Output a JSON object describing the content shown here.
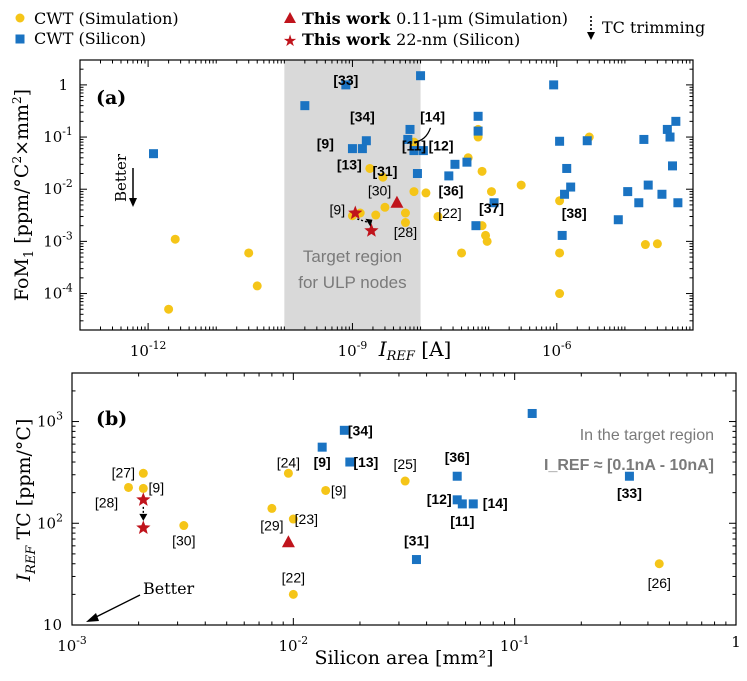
{
  "colors": {
    "cwt_sim": "#f5c518",
    "cwt_si": "#1a73c2",
    "this_work": "#c0141c",
    "target_band": "#d9d9d9",
    "band_text": "#7a7a7a"
  },
  "legend": {
    "cwt_sim": "CWT (Simulation)",
    "cwt_si": "CWT (Silicon)",
    "tw_sim_bold": "This work",
    "tw_sim_rest": "0.11-μm (Simulation)",
    "tw_si_bold": "This work",
    "tw_si_rest": "22-nm (Silicon)",
    "trim": "TC trimming"
  },
  "chart_data": [
    {
      "panel": "(a)",
      "type": "scatter",
      "xlabel": "I_REF [A]",
      "ylabel": "FoM1 [ppm/°C²×mm²]",
      "xscale": "log",
      "yscale": "log",
      "xlim": [
        1e-13,
        0.0001
      ],
      "ylim": [
        2e-05,
        3
      ],
      "xticks": [
        "10^-12",
        "10^-9",
        "10^-6"
      ],
      "yticks": [
        "10^-4",
        "10^-3",
        "10^-2",
        "10^-1",
        "1"
      ],
      "target_band_x": [
        1e-10,
        1e-08
      ],
      "target_label": [
        "Target region",
        "for ULP nodes"
      ],
      "better_label": "Better",
      "series": [
        {
          "name": "CWT (Simulation)",
          "points": [
            [
              2e-12,
              5e-05
            ],
            [
              2.5e-12,
              0.0011
            ],
            [
              3e-11,
              0.0006
            ],
            [
              4e-11,
              0.00014
            ],
            [
              1e-09,
              0.0031
            ],
            [
              1.3e-09,
              0.0035
            ],
            [
              1.8e-09,
              0.025
            ],
            [
              2.2e-09,
              0.0032
            ],
            [
              2.8e-09,
              0.017
            ],
            [
              3e-09,
              0.0045
            ],
            [
              6e-09,
              0.0035
            ],
            [
              6e-09,
              0.0023
            ],
            [
              8e-09,
              0.009
            ],
            [
              8e-09,
              0.08
            ],
            [
              1.2e-08,
              0.0085
            ],
            [
              1.8e-08,
              0.003
            ],
            [
              4e-08,
              0.0006
            ],
            [
              5e-08,
              0.04
            ],
            [
              7e-08,
              0.14
            ],
            [
              7e-08,
              0.1
            ],
            [
              8e-08,
              0.022
            ],
            [
              8e-08,
              0.002
            ],
            [
              9e-08,
              0.0013
            ],
            [
              9.5e-08,
              0.001
            ],
            [
              1.1e-07,
              0.009
            ],
            [
              3e-07,
              0.012
            ],
            [
              1.1e-06,
              0.006
            ],
            [
              1.1e-06,
              0.0006
            ],
            [
              1.1e-06,
              0.0001
            ],
            [
              3e-06,
              0.1
            ],
            [
              2e-05,
              0.00087
            ],
            [
              3e-05,
              0.0009
            ]
          ]
        },
        {
          "name": "CWT (Silicon)",
          "points": [
            [
              1.2e-12,
              0.048
            ],
            [
              2e-10,
              0.4
            ],
            [
              8e-10,
              1.0
            ],
            [
              1e-09,
              0.06
            ],
            [
              1.4e-09,
              0.06
            ],
            [
              1.6e-09,
              0.085
            ],
            [
              6.5e-09,
              0.09
            ],
            [
              7e-09,
              0.14
            ],
            [
              8e-09,
              0.055
            ],
            [
              9e-09,
              0.02
            ],
            [
              1e-08,
              1.5
            ],
            [
              1.1e-08,
              0.055
            ],
            [
              2.6e-08,
              0.018
            ],
            [
              3.2e-08,
              0.03
            ],
            [
              4.8e-08,
              0.033
            ],
            [
              6.5e-08,
              0.002
            ],
            [
              7e-08,
              0.25
            ],
            [
              7e-08,
              0.13
            ],
            [
              1.2e-07,
              0.0055
            ],
            [
              9e-07,
              1.0
            ],
            [
              1.1e-06,
              0.083
            ],
            [
              1.2e-06,
              0.0013
            ],
            [
              1.3e-06,
              0.008
            ],
            [
              1.4e-06,
              0.025
            ],
            [
              1.6e-06,
              0.011
            ],
            [
              2.8e-06,
              0.085
            ],
            [
              8e-06,
              0.0026
            ],
            [
              1.1e-05,
              0.009
            ],
            [
              1.6e-05,
              0.0055
            ],
            [
              1.9e-05,
              0.09
            ],
            [
              2.2e-05,
              0.012
            ],
            [
              3.5e-05,
              0.008
            ],
            [
              4.2e-05,
              0.14
            ],
            [
              4.6e-05,
              0.1
            ],
            [
              5e-05,
              0.028
            ],
            [
              5.6e-05,
              0.2
            ],
            [
              6e-05,
              0.0055
            ]
          ]
        },
        {
          "name": "This work 0.11-μm (Simulation)",
          "points": [
            [
              4.5e-09,
              0.0055
            ]
          ]
        },
        {
          "name": "This work 22-nm (Silicon)",
          "points": [
            [
              1.1e-09,
              0.0035
            ],
            [
              1.9e-09,
              0.0016
            ]
          ]
        }
      ],
      "annotations": [
        {
          "text": "[33]",
          "bold": true,
          "at": [
            8e-10,
            1.0
          ]
        },
        {
          "text": "[34]",
          "bold": true,
          "at": [
            1.4e-09,
            0.2
          ]
        },
        {
          "text": "[14]",
          "bold": true,
          "at": [
            1.5e-08,
            0.2
          ]
        },
        {
          "text": "[9]",
          "bold": true,
          "at": [
            4e-10,
            0.06
          ]
        },
        {
          "text": "[11]",
          "bold": true,
          "at": [
            8e-09,
            0.055
          ]
        },
        {
          "text": "[12]",
          "bold": true,
          "at": [
            2e-08,
            0.055
          ]
        },
        {
          "text": "[13]",
          "bold": true,
          "at": [
            9e-10,
            0.024
          ]
        },
        {
          "text": "[31]",
          "bold": true,
          "at": [
            3e-09,
            0.018
          ]
        },
        {
          "text": "[30]",
          "bold": false,
          "at": [
            2.5e-09,
            0.0075
          ]
        },
        {
          "text": "[36]",
          "bold": true,
          "at": [
            2.8e-08,
            0.0075
          ]
        },
        {
          "text": "[9]",
          "bold": false,
          "at": [
            6e-10,
            0.0033
          ]
        },
        {
          "text": "[22]",
          "bold": false,
          "at": [
            2.7e-08,
            0.0028
          ]
        },
        {
          "text": "[37]",
          "bold": true,
          "at": [
            1.1e-07,
            0.0035
          ]
        },
        {
          "text": "[38]",
          "bold": true,
          "at": [
            1.8e-06,
            0.0028
          ]
        },
        {
          "text": "[28]",
          "bold": false,
          "at": [
            6e-09,
            0.0012
          ]
        }
      ]
    },
    {
      "panel": "(b)",
      "type": "scatter",
      "xlabel": "Silicon area [mm²]",
      "ylabel": "I_REF TC [ppm/°C]",
      "xscale": "log",
      "yscale": "log",
      "xlim": [
        0.001,
        1
      ],
      "ylim": [
        10,
        3000
      ],
      "xticks": [
        "10^-3",
        "10^-2",
        "10^-1",
        "1"
      ],
      "yticks": [
        "10",
        "10^2",
        "10^3"
      ],
      "better_label": "Better",
      "note": [
        "In the target region",
        "I_REF ≈ [0.1nA - 10nA]"
      ],
      "series": [
        {
          "name": "CWT (Simulation)",
          "points": [
            [
              0.0021,
              310
            ],
            [
              0.0021,
              220
            ],
            [
              0.0018,
              225
            ],
            [
              0.0032,
              95
            ],
            [
              0.008,
              140
            ],
            [
              0.0095,
              310
            ],
            [
              0.01,
              110
            ],
            [
              0.01,
              20
            ],
            [
              0.014,
              210
            ],
            [
              0.032,
              260
            ],
            [
              0.45,
              40
            ]
          ],
          "labels": [
            "[27]",
            "[9]",
            "[28]",
            "[30]",
            "[29]",
            "[24]",
            "[23]",
            "[22]",
            "[9]",
            "[25]",
            "[26]"
          ]
        },
        {
          "name": "CWT (Silicon)",
          "points": [
            [
              0.0135,
              560
            ],
            [
              0.017,
              820
            ],
            [
              0.018,
              400
            ],
            [
              0.036,
              44
            ],
            [
              0.055,
              290
            ],
            [
              0.055,
              170
            ],
            [
              0.058,
              155
            ],
            [
              0.065,
              155
            ],
            [
              0.12,
              1200
            ],
            [
              0.33,
              290
            ]
          ],
          "labels": [
            "[9]",
            "[34]",
            "[13]",
            "[31]",
            "[36]",
            "[12]",
            "[11]",
            "[14]",
            "",
            "[33]"
          ]
        },
        {
          "name": "This work 0.11-μm (Simulation)",
          "points": [
            [
              0.0095,
              65
            ]
          ]
        },
        {
          "name": "This work 22-nm (Silicon)",
          "points": [
            [
              0.0021,
              170
            ],
            [
              0.0021,
              90
            ]
          ]
        }
      ]
    }
  ]
}
